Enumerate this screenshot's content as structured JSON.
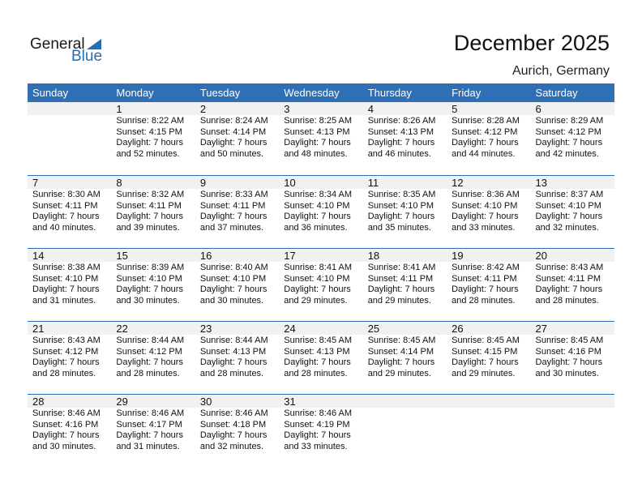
{
  "logo": {
    "general": "General",
    "blue": "Blue"
  },
  "title": "December 2025",
  "location": "Aurich, Germany",
  "weekdays": [
    "Sunday",
    "Monday",
    "Tuesday",
    "Wednesday",
    "Thursday",
    "Friday",
    "Saturday"
  ],
  "weeks": [
    [
      null,
      {
        "day": "1",
        "sunrise": "Sunrise: 8:22 AM",
        "sunset": "Sunset: 4:15 PM",
        "daylight": "Daylight: 7 hours",
        "minutes": "and 52 minutes."
      },
      {
        "day": "2",
        "sunrise": "Sunrise: 8:24 AM",
        "sunset": "Sunset: 4:14 PM",
        "daylight": "Daylight: 7 hours",
        "minutes": "and 50 minutes."
      },
      {
        "day": "3",
        "sunrise": "Sunrise: 8:25 AM",
        "sunset": "Sunset: 4:13 PM",
        "daylight": "Daylight: 7 hours",
        "minutes": "and 48 minutes."
      },
      {
        "day": "4",
        "sunrise": "Sunrise: 8:26 AM",
        "sunset": "Sunset: 4:13 PM",
        "daylight": "Daylight: 7 hours",
        "minutes": "and 46 minutes."
      },
      {
        "day": "5",
        "sunrise": "Sunrise: 8:28 AM",
        "sunset": "Sunset: 4:12 PM",
        "daylight": "Daylight: 7 hours",
        "minutes": "and 44 minutes."
      },
      {
        "day": "6",
        "sunrise": "Sunrise: 8:29 AM",
        "sunset": "Sunset: 4:12 PM",
        "daylight": "Daylight: 7 hours",
        "minutes": "and 42 minutes."
      }
    ],
    [
      {
        "day": "7",
        "sunrise": "Sunrise: 8:30 AM",
        "sunset": "Sunset: 4:11 PM",
        "daylight": "Daylight: 7 hours",
        "minutes": "and 40 minutes."
      },
      {
        "day": "8",
        "sunrise": "Sunrise: 8:32 AM",
        "sunset": "Sunset: 4:11 PM",
        "daylight": "Daylight: 7 hours",
        "minutes": "and 39 minutes."
      },
      {
        "day": "9",
        "sunrise": "Sunrise: 8:33 AM",
        "sunset": "Sunset: 4:11 PM",
        "daylight": "Daylight: 7 hours",
        "minutes": "and 37 minutes."
      },
      {
        "day": "10",
        "sunrise": "Sunrise: 8:34 AM",
        "sunset": "Sunset: 4:10 PM",
        "daylight": "Daylight: 7 hours",
        "minutes": "and 36 minutes."
      },
      {
        "day": "11",
        "sunrise": "Sunrise: 8:35 AM",
        "sunset": "Sunset: 4:10 PM",
        "daylight": "Daylight: 7 hours",
        "minutes": "and 35 minutes."
      },
      {
        "day": "12",
        "sunrise": "Sunrise: 8:36 AM",
        "sunset": "Sunset: 4:10 PM",
        "daylight": "Daylight: 7 hours",
        "minutes": "and 33 minutes."
      },
      {
        "day": "13",
        "sunrise": "Sunrise: 8:37 AM",
        "sunset": "Sunset: 4:10 PM",
        "daylight": "Daylight: 7 hours",
        "minutes": "and 32 minutes."
      }
    ],
    [
      {
        "day": "14",
        "sunrise": "Sunrise: 8:38 AM",
        "sunset": "Sunset: 4:10 PM",
        "daylight": "Daylight: 7 hours",
        "minutes": "and 31 minutes."
      },
      {
        "day": "15",
        "sunrise": "Sunrise: 8:39 AM",
        "sunset": "Sunset: 4:10 PM",
        "daylight": "Daylight: 7 hours",
        "minutes": "and 30 minutes."
      },
      {
        "day": "16",
        "sunrise": "Sunrise: 8:40 AM",
        "sunset": "Sunset: 4:10 PM",
        "daylight": "Daylight: 7 hours",
        "minutes": "and 30 minutes."
      },
      {
        "day": "17",
        "sunrise": "Sunrise: 8:41 AM",
        "sunset": "Sunset: 4:10 PM",
        "daylight": "Daylight: 7 hours",
        "minutes": "and 29 minutes."
      },
      {
        "day": "18",
        "sunrise": "Sunrise: 8:41 AM",
        "sunset": "Sunset: 4:11 PM",
        "daylight": "Daylight: 7 hours",
        "minutes": "and 29 minutes."
      },
      {
        "day": "19",
        "sunrise": "Sunrise: 8:42 AM",
        "sunset": "Sunset: 4:11 PM",
        "daylight": "Daylight: 7 hours",
        "minutes": "and 28 minutes."
      },
      {
        "day": "20",
        "sunrise": "Sunrise: 8:43 AM",
        "sunset": "Sunset: 4:11 PM",
        "daylight": "Daylight: 7 hours",
        "minutes": "and 28 minutes."
      }
    ],
    [
      {
        "day": "21",
        "sunrise": "Sunrise: 8:43 AM",
        "sunset": "Sunset: 4:12 PM",
        "daylight": "Daylight: 7 hours",
        "minutes": "and 28 minutes."
      },
      {
        "day": "22",
        "sunrise": "Sunrise: 8:44 AM",
        "sunset": "Sunset: 4:12 PM",
        "daylight": "Daylight: 7 hours",
        "minutes": "and 28 minutes."
      },
      {
        "day": "23",
        "sunrise": "Sunrise: 8:44 AM",
        "sunset": "Sunset: 4:13 PM",
        "daylight": "Daylight: 7 hours",
        "minutes": "and 28 minutes."
      },
      {
        "day": "24",
        "sunrise": "Sunrise: 8:45 AM",
        "sunset": "Sunset: 4:13 PM",
        "daylight": "Daylight: 7 hours",
        "minutes": "and 28 minutes."
      },
      {
        "day": "25",
        "sunrise": "Sunrise: 8:45 AM",
        "sunset": "Sunset: 4:14 PM",
        "daylight": "Daylight: 7 hours",
        "minutes": "and 29 minutes."
      },
      {
        "day": "26",
        "sunrise": "Sunrise: 8:45 AM",
        "sunset": "Sunset: 4:15 PM",
        "daylight": "Daylight: 7 hours",
        "minutes": "and 29 minutes."
      },
      {
        "day": "27",
        "sunrise": "Sunrise: 8:45 AM",
        "sunset": "Sunset: 4:16 PM",
        "daylight": "Daylight: 7 hours",
        "minutes": "and 30 minutes."
      }
    ],
    [
      {
        "day": "28",
        "sunrise": "Sunrise: 8:46 AM",
        "sunset": "Sunset: 4:16 PM",
        "daylight": "Daylight: 7 hours",
        "minutes": "and 30 minutes."
      },
      {
        "day": "29",
        "sunrise": "Sunrise: 8:46 AM",
        "sunset": "Sunset: 4:17 PM",
        "daylight": "Daylight: 7 hours",
        "minutes": "and 31 minutes."
      },
      {
        "day": "30",
        "sunrise": "Sunrise: 8:46 AM",
        "sunset": "Sunset: 4:18 PM",
        "daylight": "Daylight: 7 hours",
        "minutes": "and 32 minutes."
      },
      {
        "day": "31",
        "sunrise": "Sunrise: 8:46 AM",
        "sunset": "Sunset: 4:19 PM",
        "daylight": "Daylight: 7 hours",
        "minutes": "and 33 minutes."
      },
      null,
      null,
      null
    ]
  ],
  "colors": {
    "accent": "#2e6fb5",
    "date_bar": "#f1f1f1"
  }
}
